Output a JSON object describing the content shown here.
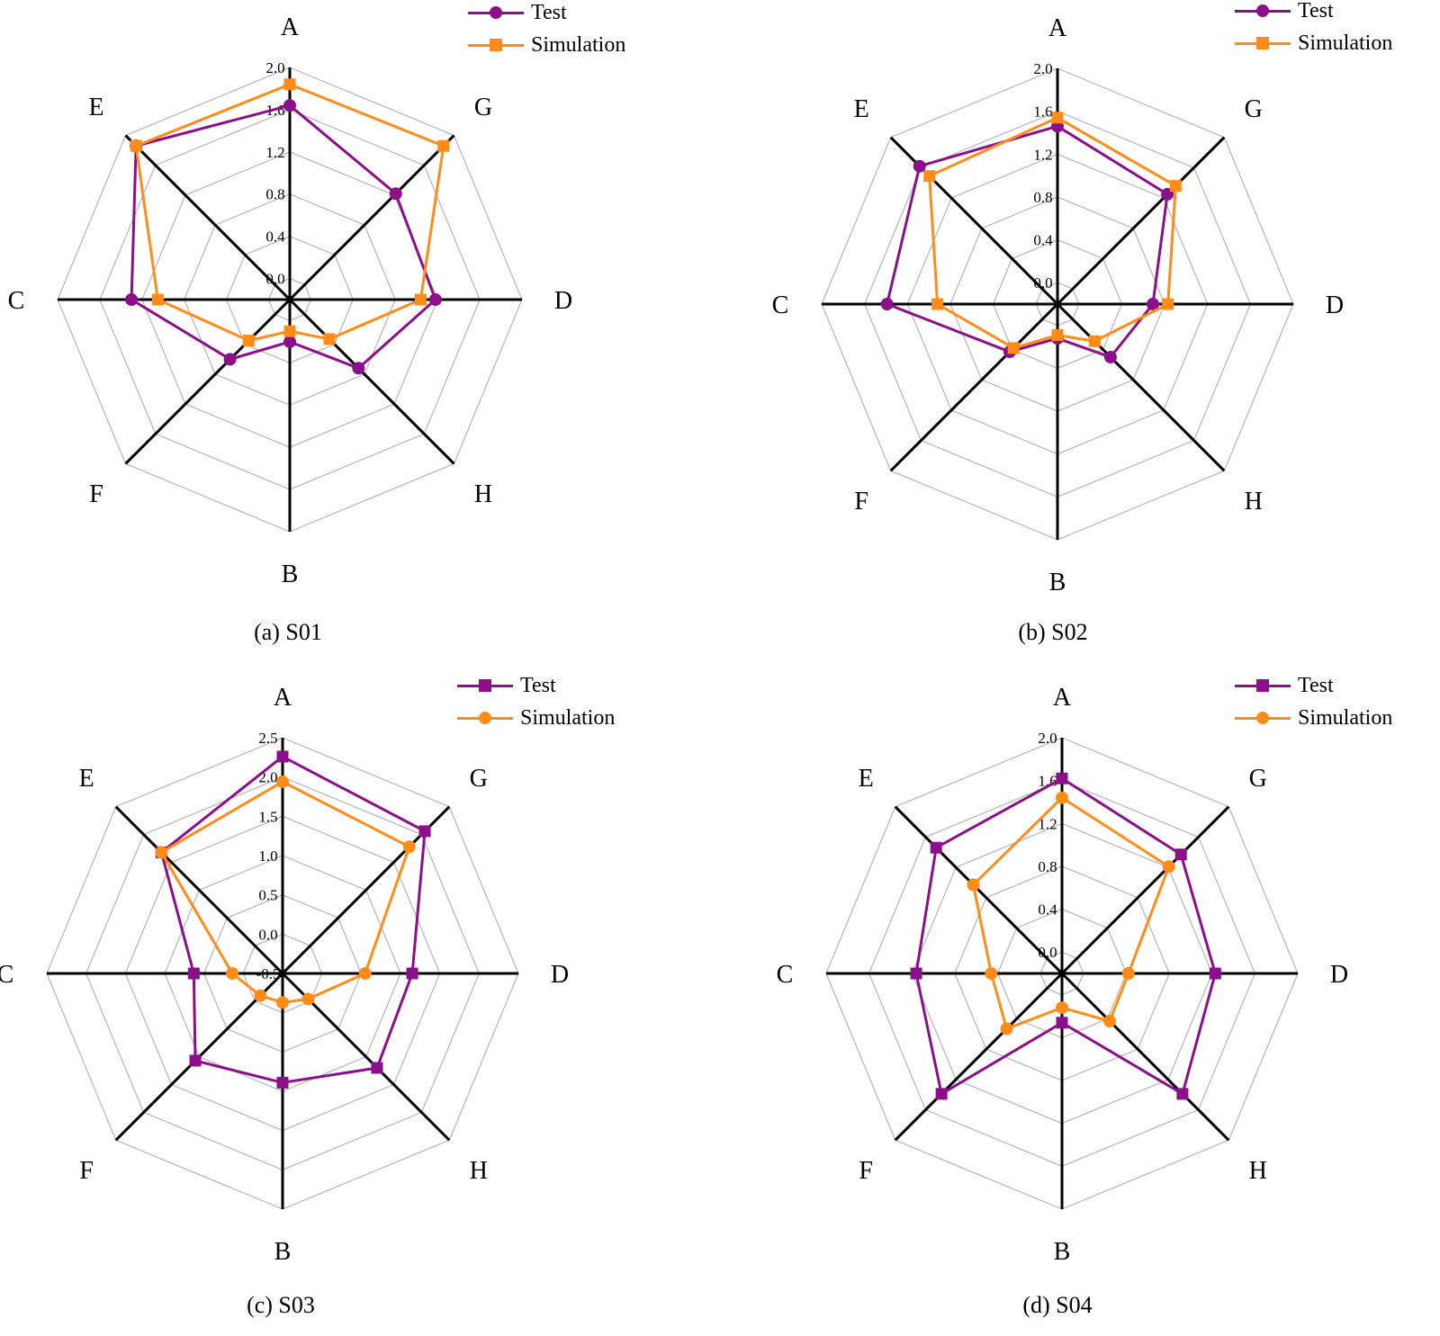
{
  "colors": {
    "purple": "#8B0F8B",
    "orange": "#FF8C19",
    "grid": "#b5b5b5",
    "axis": "#000000"
  },
  "chart_data": [
    {
      "type": "radar",
      "caption": "(a) S01",
      "axes": [
        "A",
        "G",
        "D",
        "H",
        "B",
        "F",
        "C",
        "E"
      ],
      "ticks": [
        "0.0",
        "0.4",
        "0.8",
        "1.2",
        "1.6",
        "2.0"
      ],
      "range": [
        -0.2,
        2.0
      ],
      "series": [
        {
          "name": "Test",
          "marker": "circle",
          "color": "#8B0F8B",
          "values": [
            1.64,
            1.22,
            1.18,
            0.72,
            0.2,
            0.6,
            1.3,
            1.86
          ]
        },
        {
          "name": "Simulation",
          "marker": "square",
          "color": "#FF8C19",
          "values": [
            1.84,
            1.86,
            1.04,
            0.33,
            0.1,
            0.35,
            1.05,
            1.86
          ]
        }
      ]
    },
    {
      "type": "radar",
      "caption": "(b) S02",
      "axes": [
        "A",
        "G",
        "D",
        "H",
        "B",
        "F",
        "C",
        "E"
      ],
      "ticks": [
        "0.0",
        "0.4",
        "0.8",
        "1.2",
        "1.6",
        "2.0"
      ],
      "range": [
        -0.2,
        2.0
      ],
      "series": [
        {
          "name": "Test",
          "marker": "circle",
          "color": "#8B0F8B",
          "values": [
            1.46,
            1.25,
            0.69,
            0.5,
            0.12,
            0.43,
            1.39,
            1.62
          ]
        },
        {
          "name": "Simulation",
          "marker": "square",
          "color": "#FF8C19",
          "values": [
            1.54,
            1.36,
            0.83,
            0.29,
            0.09,
            0.38,
            0.92,
            1.49
          ]
        }
      ]
    },
    {
      "type": "radar",
      "caption": "(c) S03",
      "axes": [
        "A",
        "G",
        "D",
        "H",
        "B",
        "F",
        "C",
        "E"
      ],
      "ticks": [
        "-0.5",
        "0.0",
        "0.5",
        "1.0",
        "1.5",
        "2.0",
        "2.5"
      ],
      "range": [
        -0.5,
        2.5
      ],
      "series": [
        {
          "name": "Test",
          "marker": "square",
          "color": "#8B0F8B",
          "values": [
            2.26,
            2.06,
            1.15,
            1.2,
            0.89,
            1.07,
            0.63,
            1.68
          ]
        },
        {
          "name": "Simulation",
          "marker": "circle",
          "color": "#FF8C19",
          "values": [
            1.94,
            1.78,
            0.55,
            -0.04,
            -0.13,
            -0.1,
            0.14,
            1.68
          ]
        }
      ]
    },
    {
      "type": "radar",
      "caption": "(d) S04",
      "axes": [
        "A",
        "G",
        "D",
        "H",
        "B",
        "F",
        "C",
        "E"
      ],
      "ticks": [
        "0.0",
        "0.4",
        "0.8",
        "1.2",
        "1.6",
        "2.0"
      ],
      "range": [
        -0.2,
        2.0
      ],
      "series": [
        {
          "name": "Test",
          "marker": "square",
          "color": "#8B0F8B",
          "values": [
            1.62,
            1.37,
            1.23,
            1.39,
            0.26,
            1.39,
            1.16,
            1.46
          ]
        },
        {
          "name": "Simulation",
          "marker": "circle",
          "color": "#FF8C19",
          "values": [
            1.44,
            1.21,
            0.42,
            0.43,
            0.12,
            0.53,
            0.46,
            0.97
          ]
        }
      ]
    }
  ]
}
